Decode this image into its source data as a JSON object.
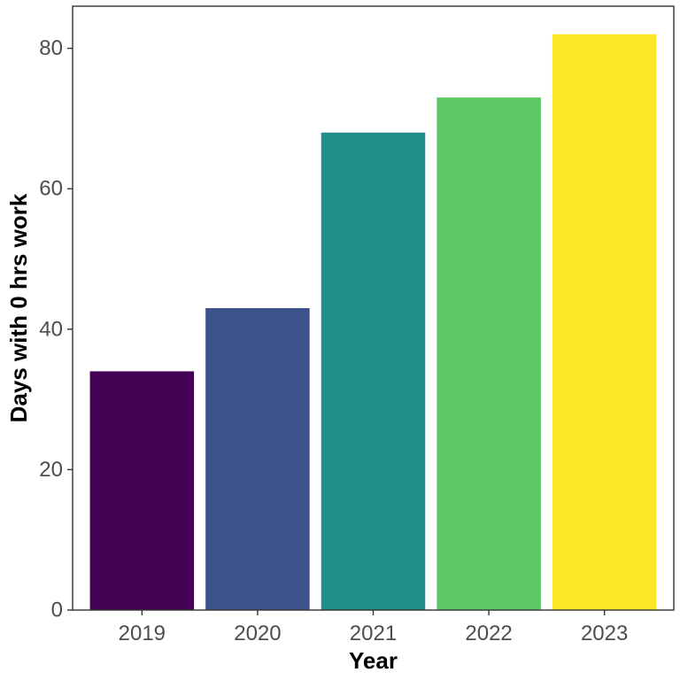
{
  "chart_data": {
    "type": "bar",
    "title": "",
    "xlabel": "Year",
    "ylabel": "Days with 0 hrs work",
    "categories": [
      "2019",
      "2020",
      "2021",
      "2022",
      "2023"
    ],
    "values": [
      34,
      43,
      68,
      73,
      82
    ],
    "colors": [
      "#440154",
      "#3b528b",
      "#21908c",
      "#5dc863",
      "#fde725"
    ],
    "ylim": [
      0,
      86
    ],
    "yticks": [
      0,
      20,
      40,
      60,
      80
    ],
    "grid": false,
    "legend": "none"
  }
}
